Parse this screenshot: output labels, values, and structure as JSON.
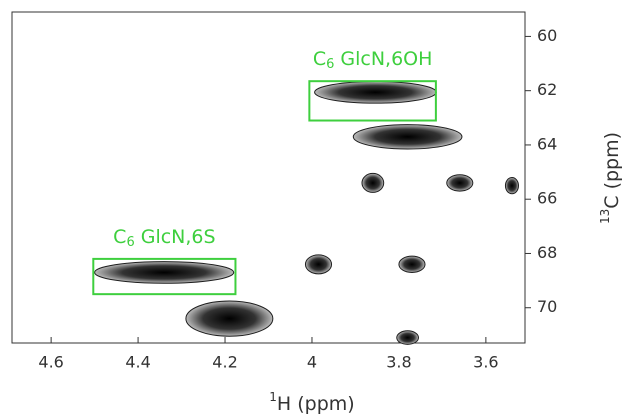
{
  "chart_data": {
    "type": "nmr2d",
    "x_label": {
      "sup": "1",
      "text": "H (ppm)"
    },
    "y_label": {
      "sup": "13",
      "text": "C (ppm)"
    },
    "xlim": [
      4.69,
      3.51
    ],
    "ylim": [
      59.1,
      71.3
    ],
    "xticks": [
      4.6,
      4.4,
      4.2,
      4.0,
      3.8,
      3.6
    ],
    "yticks": [
      60,
      62,
      64,
      66,
      68,
      70
    ],
    "color": "#1e1e1e",
    "peaks": {
      "x": [
        3.854,
        3.78,
        3.86,
        3.66,
        3.54,
        3.985,
        3.77,
        4.34,
        4.19,
        3.78
      ],
      "y": [
        62.06,
        63.7,
        65.4,
        65.4,
        65.5,
        68.4,
        68.4,
        68.7,
        70.4,
        71.1
      ],
      "width": [
        0.28,
        0.25,
        0.05,
        0.06,
        0.03,
        0.06,
        0.06,
        0.32,
        0.2,
        0.05
      ],
      "height": [
        0.8,
        0.9,
        0.7,
        0.6,
        0.6,
        0.7,
        0.6,
        0.8,
        1.3,
        0.5
      ]
    },
    "annotations": [
      {
        "base": "C",
        "sub": "6",
        "text": "GlcN,6OH",
        "x": [
          4.006,
          3.715
        ],
        "y": [
          61.65,
          63.1
        ]
      },
      {
        "base": "C",
        "sub": "6",
        "text": "GlcN,6S",
        "x": [
          4.503,
          4.176
        ],
        "y": [
          68.2,
          69.5
        ]
      }
    ],
    "box_color": "#3ecf3e"
  }
}
